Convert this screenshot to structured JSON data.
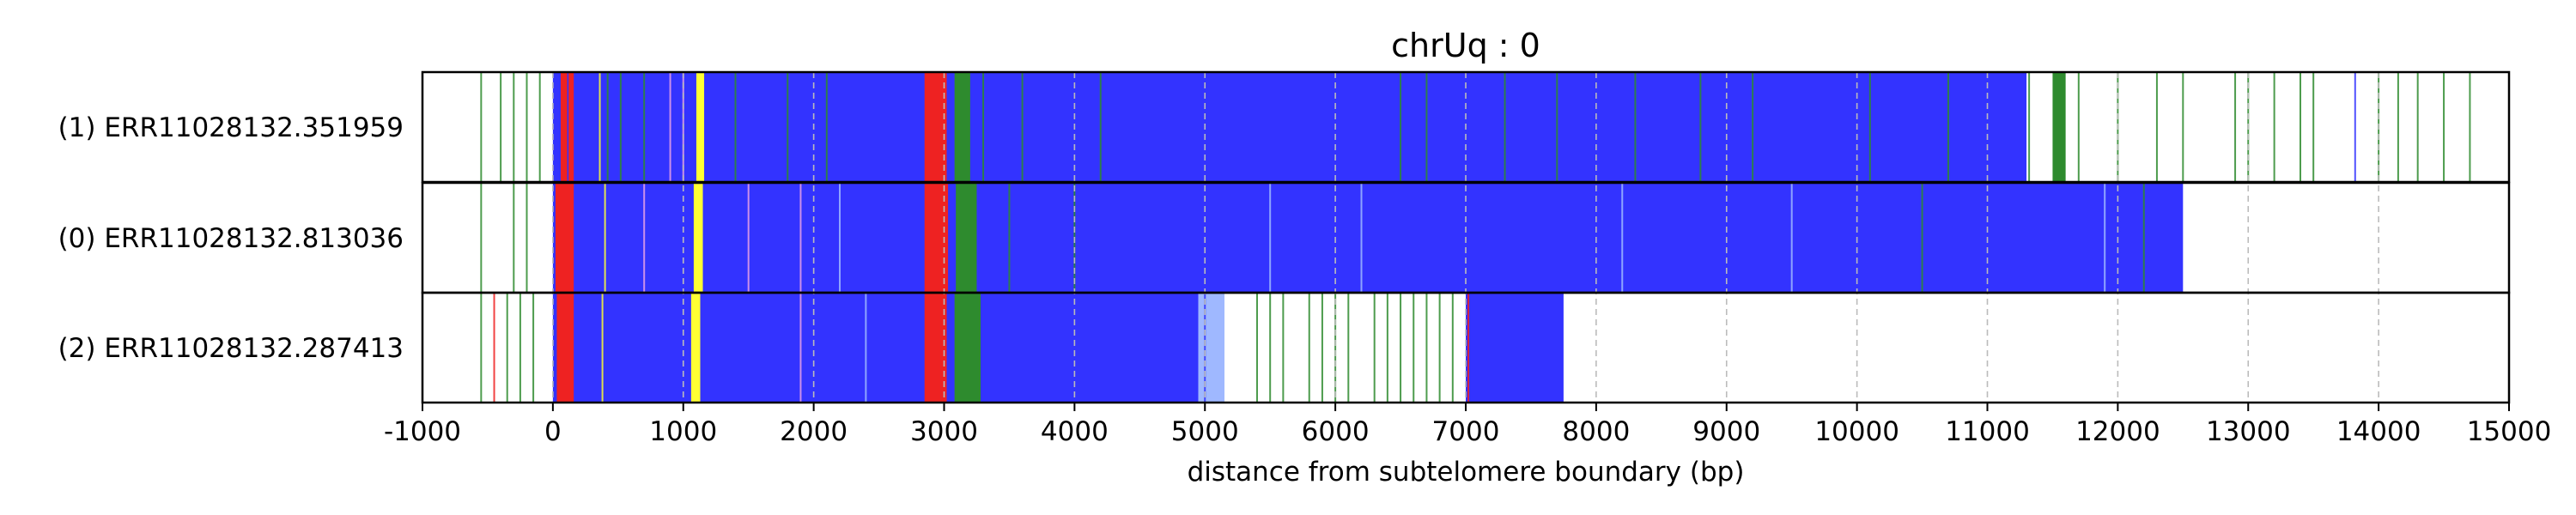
{
  "chart_data": {
    "type": "bar",
    "title": "chrUq : 0",
    "xlabel": "distance from subtelomere boundary (bp)",
    "ylabel": "",
    "xlim": [
      -1000,
      15000
    ],
    "x_ticks": [
      -1000,
      0,
      1000,
      2000,
      3000,
      4000,
      5000,
      6000,
      7000,
      8000,
      9000,
      10000,
      11000,
      12000,
      13000,
      14000,
      15000
    ],
    "x_tick_labels": [
      "-1000",
      "0",
      "1000",
      "2000",
      "3000",
      "4000",
      "5000",
      "6000",
      "7000",
      "8000",
      "9000",
      "10000",
      "11000",
      "12000",
      "13000",
      "14000",
      "15000"
    ],
    "grid": "vertical dashed",
    "colors": {
      "blue": "#3333ff",
      "red": "#ee2222",
      "yellow": "#ffff33",
      "green": "#2e8b2e",
      "pink": "#e6a0e6",
      "lightblue": "#9fb8ff",
      "grid": "#bbbbbb"
    },
    "reads": [
      {
        "label": "(1) ERR11028132.351959",
        "segments": [
          {
            "start": 0,
            "end": 11300,
            "color": "blue"
          },
          {
            "start": 60,
            "end": 110,
            "color": "red"
          },
          {
            "start": 120,
            "end": 160,
            "color": "red"
          },
          {
            "start": 1100,
            "end": 1160,
            "color": "yellow"
          },
          {
            "start": 2850,
            "end": 3020,
            "color": "red"
          },
          {
            "start": 3080,
            "end": 3200,
            "color": "green"
          },
          {
            "start": 11500,
            "end": 11600,
            "color": "green"
          }
        ],
        "lines": [
          {
            "pos": -550,
            "color": "green"
          },
          {
            "pos": -400,
            "color": "green"
          },
          {
            "pos": -300,
            "color": "green"
          },
          {
            "pos": -200,
            "color": "green"
          },
          {
            "pos": -100,
            "color": "green"
          },
          {
            "pos": 360,
            "color": "yellow"
          },
          {
            "pos": 420,
            "color": "green"
          },
          {
            "pos": 520,
            "color": "green"
          },
          {
            "pos": 700,
            "color": "green"
          },
          {
            "pos": 900,
            "color": "pink"
          },
          {
            "pos": 1000,
            "color": "pink"
          },
          {
            "pos": 1400,
            "color": "green"
          },
          {
            "pos": 1800,
            "color": "green"
          },
          {
            "pos": 2100,
            "color": "green"
          },
          {
            "pos": 3300,
            "color": "green"
          },
          {
            "pos": 3600,
            "color": "green"
          },
          {
            "pos": 4200,
            "color": "green"
          },
          {
            "pos": 6500,
            "color": "green"
          },
          {
            "pos": 6700,
            "color": "green"
          },
          {
            "pos": 7300,
            "color": "green"
          },
          {
            "pos": 7700,
            "color": "green"
          },
          {
            "pos": 8300,
            "color": "green"
          },
          {
            "pos": 8800,
            "color": "green"
          },
          {
            "pos": 9200,
            "color": "green"
          },
          {
            "pos": 10100,
            "color": "green"
          },
          {
            "pos": 10700,
            "color": "green"
          },
          {
            "pos": 11320,
            "color": "green"
          },
          {
            "pos": 11700,
            "color": "green"
          },
          {
            "pos": 12000,
            "color": "green"
          },
          {
            "pos": 12300,
            "color": "green"
          },
          {
            "pos": 12500,
            "color": "green"
          },
          {
            "pos": 12900,
            "color": "green"
          },
          {
            "pos": 13000,
            "color": "green"
          },
          {
            "pos": 13200,
            "color": "green"
          },
          {
            "pos": 13400,
            "color": "green"
          },
          {
            "pos": 13500,
            "color": "green"
          },
          {
            "pos": 13820,
            "color": "blue"
          },
          {
            "pos": 14000,
            "color": "green"
          },
          {
            "pos": 14150,
            "color": "green"
          },
          {
            "pos": 14300,
            "color": "green"
          },
          {
            "pos": 14500,
            "color": "green"
          },
          {
            "pos": 14700,
            "color": "green"
          }
        ]
      },
      {
        "label": "(0) ERR11028132.813036",
        "segments": [
          {
            "start": 0,
            "end": 12500,
            "color": "blue"
          },
          {
            "start": 20,
            "end": 160,
            "color": "red"
          },
          {
            "start": 1080,
            "end": 1150,
            "color": "yellow"
          },
          {
            "start": 2850,
            "end": 3030,
            "color": "red"
          },
          {
            "start": 3090,
            "end": 3250,
            "color": "green"
          }
        ],
        "lines": [
          {
            "pos": -550,
            "color": "green"
          },
          {
            "pos": -300,
            "color": "green"
          },
          {
            "pos": -200,
            "color": "green"
          },
          {
            "pos": 400,
            "color": "yellow"
          },
          {
            "pos": 700,
            "color": "pink"
          },
          {
            "pos": 1500,
            "color": "pink"
          },
          {
            "pos": 1900,
            "color": "pink"
          },
          {
            "pos": 2200,
            "color": "lightblue"
          },
          {
            "pos": 3500,
            "color": "green"
          },
          {
            "pos": 4000,
            "color": "green"
          },
          {
            "pos": 5500,
            "color": "lightblue"
          },
          {
            "pos": 6200,
            "color": "lightblue"
          },
          {
            "pos": 8200,
            "color": "lightblue"
          },
          {
            "pos": 9500,
            "color": "lightblue"
          },
          {
            "pos": 10500,
            "color": "green"
          },
          {
            "pos": 11900,
            "color": "lightblue"
          },
          {
            "pos": 12200,
            "color": "green"
          }
        ]
      },
      {
        "label": "(2) ERR11028132.287413",
        "segments": [
          {
            "start": 0,
            "end": 4950,
            "color": "blue"
          },
          {
            "start": 30,
            "end": 160,
            "color": "red"
          },
          {
            "start": 1060,
            "end": 1130,
            "color": "yellow"
          },
          {
            "start": 2850,
            "end": 3020,
            "color": "red"
          },
          {
            "start": 3080,
            "end": 3280,
            "color": "green"
          },
          {
            "start": 4950,
            "end": 5150,
            "color": "lightblue"
          },
          {
            "start": 7000,
            "end": 7750,
            "color": "blue"
          }
        ],
        "lines": [
          {
            "pos": -550,
            "color": "green"
          },
          {
            "pos": -450,
            "color": "red"
          },
          {
            "pos": -350,
            "color": "green"
          },
          {
            "pos": -250,
            "color": "green"
          },
          {
            "pos": -150,
            "color": "green"
          },
          {
            "pos": 380,
            "color": "yellow"
          },
          {
            "pos": 1900,
            "color": "pink"
          },
          {
            "pos": 2400,
            "color": "lightblue"
          },
          {
            "pos": 5000,
            "color": "blue"
          },
          {
            "pos": 5400,
            "color": "green"
          },
          {
            "pos": 5500,
            "color": "green"
          },
          {
            "pos": 5600,
            "color": "green"
          },
          {
            "pos": 5800,
            "color": "green"
          },
          {
            "pos": 5900,
            "color": "green"
          },
          {
            "pos": 6000,
            "color": "green"
          },
          {
            "pos": 6100,
            "color": "green"
          },
          {
            "pos": 6300,
            "color": "green"
          },
          {
            "pos": 6400,
            "color": "green"
          },
          {
            "pos": 6500,
            "color": "green"
          },
          {
            "pos": 6600,
            "color": "green"
          },
          {
            "pos": 6700,
            "color": "green"
          },
          {
            "pos": 6800,
            "color": "green"
          },
          {
            "pos": 6900,
            "color": "green"
          },
          {
            "pos": 7020,
            "color": "red"
          }
        ]
      }
    ]
  }
}
